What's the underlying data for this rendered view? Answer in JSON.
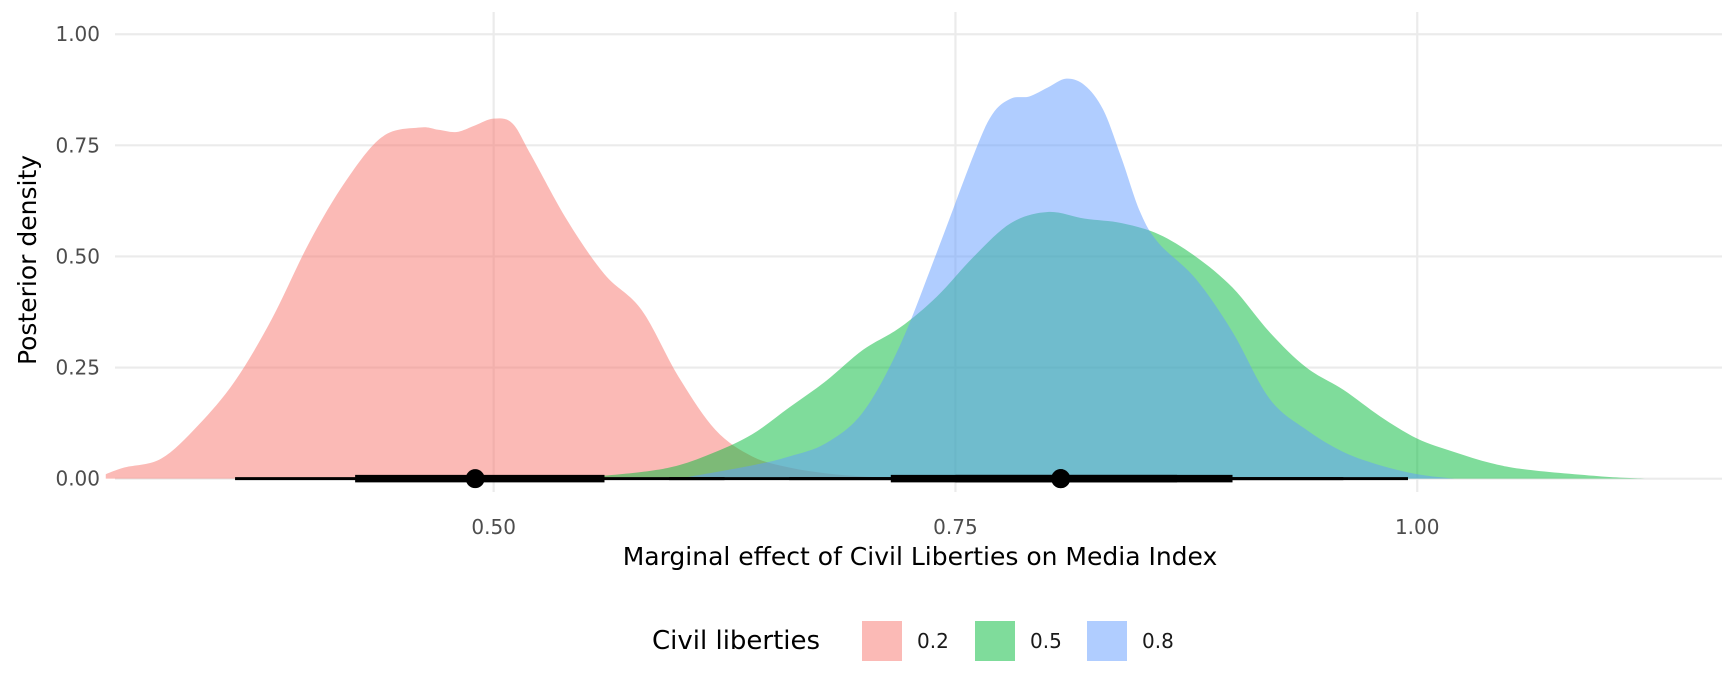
{
  "chart_data": {
    "type": "area",
    "subtype": "density-with-pointinterval",
    "xlabel": "Marginal effect of Civil Liberties on Media Index",
    "ylabel": "Posterior density",
    "xlim": [
      0.295,
      1.165
    ],
    "ylim": [
      -0.03,
      1.05
    ],
    "x_ticks": [
      0.5,
      0.75,
      1.0
    ],
    "x_tick_labels": [
      "0.50",
      "0.75",
      "1.00"
    ],
    "y_ticks": [
      0,
      0.25,
      0.5,
      0.75,
      1.0
    ],
    "y_tick_labels": [
      "0.00",
      "0.25",
      "0.50",
      "0.75",
      "1.00"
    ],
    "grid": true,
    "legend": {
      "title": "Civil liberties",
      "position": "bottom"
    },
    "series": [
      {
        "name": "0.2",
        "color": "#F8766D",
        "x": [
          0.29,
          0.3,
          0.32,
          0.34,
          0.36,
          0.38,
          0.4,
          0.42,
          0.44,
          0.46,
          0.47,
          0.48,
          0.49,
          0.5,
          0.51,
          0.52,
          0.54,
          0.56,
          0.58,
          0.6,
          0.62,
          0.64,
          0.66,
          0.68,
          0.7,
          0.72,
          0.75
        ],
        "density": [
          0.01,
          0.025,
          0.045,
          0.12,
          0.22,
          0.36,
          0.53,
          0.67,
          0.77,
          0.79,
          0.785,
          0.78,
          0.795,
          0.81,
          0.8,
          0.73,
          0.58,
          0.46,
          0.38,
          0.23,
          0.11,
          0.05,
          0.025,
          0.012,
          0.005,
          0.002,
          0.0
        ]
      },
      {
        "name": "0.5",
        "color": "#00BA38",
        "x": [
          0.55,
          0.58,
          0.6,
          0.62,
          0.64,
          0.66,
          0.68,
          0.7,
          0.72,
          0.74,
          0.76,
          0.78,
          0.8,
          0.82,
          0.84,
          0.86,
          0.88,
          0.9,
          0.92,
          0.94,
          0.96,
          0.98,
          1.0,
          1.02,
          1.04,
          1.06,
          1.1,
          1.125
        ],
        "density": [
          0.003,
          0.015,
          0.03,
          0.06,
          0.1,
          0.16,
          0.22,
          0.29,
          0.34,
          0.41,
          0.5,
          0.575,
          0.6,
          0.585,
          0.575,
          0.55,
          0.5,
          0.43,
          0.33,
          0.25,
          0.2,
          0.14,
          0.09,
          0.06,
          0.035,
          0.02,
          0.005,
          0.0
        ]
      },
      {
        "name": "0.8",
        "color": "#619CFF",
        "x": [
          0.6,
          0.64,
          0.66,
          0.68,
          0.7,
          0.72,
          0.74,
          0.76,
          0.77,
          0.78,
          0.79,
          0.8,
          0.81,
          0.82,
          0.83,
          0.84,
          0.85,
          0.86,
          0.88,
          0.9,
          0.92,
          0.94,
          0.96,
          0.98,
          1.0,
          1.02
        ],
        "density": [
          0.0,
          0.03,
          0.05,
          0.08,
          0.15,
          0.3,
          0.51,
          0.73,
          0.82,
          0.855,
          0.86,
          0.88,
          0.9,
          0.885,
          0.83,
          0.72,
          0.6,
          0.53,
          0.45,
          0.33,
          0.18,
          0.11,
          0.06,
          0.03,
          0.01,
          0.0
        ]
      }
    ],
    "intervals": [
      {
        "series": "0.2",
        "point": 0.49,
        "inner": [
          0.425,
          0.56
        ],
        "outer": [
          0.36,
          0.625
        ]
      },
      {
        "series": "0.5",
        "point": 0.807,
        "inner": [
          0.715,
          0.9
        ],
        "outer": [
          0.595,
          0.995
        ]
      },
      {
        "series": "0.8",
        "point": 0.807,
        "inner": [
          0.75,
          0.87
        ],
        "outer": [
          0.66,
          0.96
        ]
      }
    ]
  }
}
